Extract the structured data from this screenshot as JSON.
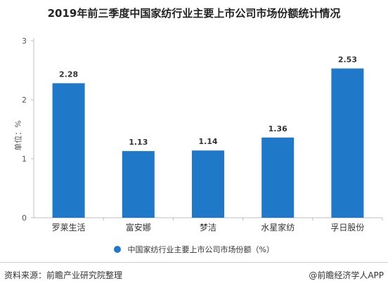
{
  "title": "2019年前三季度中国家纺行业主要上市公司市场份额统计情况",
  "chart_data": {
    "type": "bar",
    "categories": [
      "罗莱生活",
      "富安娜",
      "梦洁",
      "水星家纺",
      "孚日股份"
    ],
    "series": [
      {
        "name": "中国家纺行业主要上市公司市场份额（%）",
        "values": [
          2.28,
          1.13,
          1.14,
          1.36,
          2.53
        ],
        "labels": [
          "2.28",
          "1.13",
          "1.14",
          "1.36",
          "2.53"
        ]
      }
    ],
    "ylabel": "单位：%",
    "ylim": [
      0,
      3
    ],
    "yticks": [
      "0",
      "1",
      "2",
      "3"
    ],
    "grid": false,
    "legend_position": "bottom",
    "bar_color": "#1f78c8"
  },
  "footer": {
    "source": "资料来源：前瞻产业研究院整理",
    "credit": "@前瞻经济学人APP"
  }
}
